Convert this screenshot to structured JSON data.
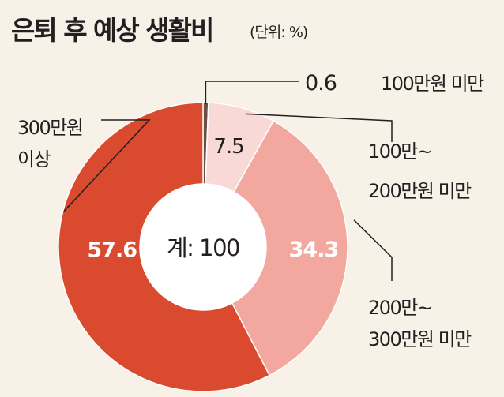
{
  "title": "은퇴 후 예상 생활비",
  "unit": "(단위: %)",
  "colors": {
    "background": "#f7f1e7",
    "slice_lt100": "#6b4f45",
    "slice_100_200": "#f9d9d6",
    "slice_200_300": "#f2a79f",
    "slice_ge300": "#d94a2e",
    "leader_line": "#231f20"
  },
  "chart_data": {
    "type": "pie",
    "style": "donut",
    "title": "은퇴 후 예상 생활비",
    "unit": "(단위: %)",
    "center_label": "계: 100",
    "slices": [
      {
        "label_lines": [
          "100만원 미만"
        ],
        "value": 0.6,
        "value_label": "0.6"
      },
      {
        "label_lines": [
          "100만~",
          "200만원 미만"
        ],
        "value": 7.5,
        "value_label": "7.5"
      },
      {
        "label_lines": [
          "200만~",
          "300만원 미만"
        ],
        "value": 34.3,
        "value_label": "34.3"
      },
      {
        "label_lines": [
          "300만원",
          "이상"
        ],
        "value": 57.6,
        "value_label": "57.6"
      }
    ]
  }
}
